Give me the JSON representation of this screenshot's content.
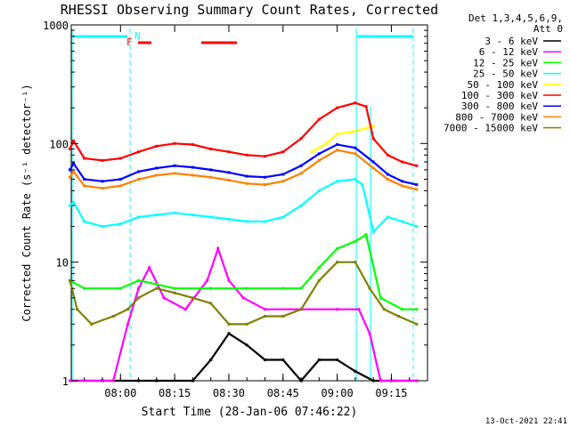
{
  "chart_data": {
    "type": "line",
    "title": "RHESSI Observing Summary Count Rates, Corrected",
    "xlabel": "Start Time (28-Jan-06 07:46:22)",
    "ylabel": "Corrected Count Rate (s⁻¹ detector⁻¹)",
    "y_scale": "log",
    "ylim": [
      1,
      1000
    ],
    "xlim": [
      "07:46:22",
      "09:25:00"
    ],
    "x_ticks": [
      "08:00",
      "08:15",
      "08:30",
      "08:45",
      "09:00",
      "09:15"
    ],
    "y_ticks": [
      "1",
      "10",
      "100",
      "1000"
    ],
    "grid": false,
    "legend_position": "right",
    "legend_header": [
      "Det 1,3,4,5,6,9,",
      "Att 0"
    ],
    "footer": "13-Oct-2021 22:41",
    "markers": {
      "F": "F",
      "N": "N"
    },
    "series": [
      {
        "name": "3 - 6 keV",
        "color": "#000000",
        "x": [
          "07:46",
          "07:55",
          "08:05",
          "08:10",
          "08:20",
          "08:25",
          "08:30",
          "08:35",
          "08:40",
          "08:45",
          "08:50",
          "08:55",
          "09:00",
          "09:05",
          "09:10",
          "09:15",
          "09:22"
        ],
        "y": [
          1,
          1,
          1,
          1,
          1,
          1.5,
          2.5,
          2,
          1.5,
          1.5,
          1,
          1.5,
          1.5,
          1.2,
          1,
          1,
          1
        ]
      },
      {
        "name": "6 - 12 keV",
        "color": "#ff00ff",
        "x": [
          "07:46",
          "07:58",
          "08:02",
          "08:05",
          "08:08",
          "08:12",
          "08:18",
          "08:24",
          "08:27",
          "08:30",
          "08:34",
          "08:40",
          "08:50",
          "09:00",
          "09:06",
          "09:09",
          "09:12",
          "09:16",
          "09:22"
        ],
        "y": [
          1,
          1,
          3,
          6,
          9,
          5,
          4,
          7,
          13,
          7,
          5,
          4,
          4,
          4,
          4,
          2.5,
          1,
          1,
          1
        ]
      },
      {
        "name": "12 - 25 keV",
        "color": "#00ff00",
        "x": [
          "07:46",
          "07:50",
          "08:00",
          "08:05",
          "08:10",
          "08:15",
          "08:25",
          "08:35",
          "08:45",
          "08:50",
          "08:55",
          "09:00",
          "09:05",
          "09:08",
          "09:12",
          "09:18",
          "09:22"
        ],
        "y": [
          7,
          6,
          6,
          7,
          6.5,
          6,
          6,
          6,
          6,
          6,
          9,
          13,
          15,
          17,
          5,
          4,
          4
        ]
      },
      {
        "name": "25 - 50 keV",
        "color": "#00ffff",
        "x": [
          "07:46",
          "07:47",
          "07:50",
          "07:55",
          "08:00",
          "08:05",
          "08:10",
          "08:15",
          "08:20",
          "08:25",
          "08:30",
          "08:35",
          "08:40",
          "08:45",
          "08:50",
          "08:55",
          "09:00",
          "09:05",
          "09:07",
          "09:10",
          "09:14",
          "09:18",
          "09:22"
        ],
        "y": [
          30,
          32,
          22,
          20,
          21,
          24,
          25,
          26,
          25,
          24,
          23,
          22,
          22,
          24,
          30,
          40,
          48,
          50,
          45,
          18,
          24,
          22,
          20
        ]
      },
      {
        "name": "50 - 100 keV",
        "color": "#ffff00",
        "x": [
          "08:53",
          "08:57",
          "09:00",
          "09:04",
          "09:08",
          "09:10"
        ],
        "y": [
          85,
          100,
          120,
          125,
          135,
          140
        ]
      },
      {
        "name": "100 - 300 keV",
        "color": "#ff0000",
        "x": [
          "07:46",
          "07:47",
          "07:50",
          "07:55",
          "08:00",
          "08:05",
          "08:10",
          "08:15",
          "08:20",
          "08:25",
          "08:30",
          "08:35",
          "08:40",
          "08:45",
          "08:50",
          "08:55",
          "09:00",
          "09:05",
          "09:08",
          "09:10",
          "09:14",
          "09:18",
          "09:22"
        ],
        "y": [
          90,
          105,
          75,
          72,
          75,
          85,
          95,
          100,
          98,
          90,
          85,
          80,
          78,
          85,
          110,
          160,
          200,
          220,
          205,
          110,
          80,
          70,
          65
        ]
      },
      {
        "name": "300 - 800 keV",
        "color": "#0000ff",
        "x": [
          "07:46",
          "07:47",
          "07:50",
          "07:55",
          "08:00",
          "08:05",
          "08:10",
          "08:15",
          "08:20",
          "08:25",
          "08:30",
          "08:35",
          "08:40",
          "08:45",
          "08:50",
          "08:55",
          "09:00",
          "09:05",
          "09:10",
          "09:14",
          "09:18",
          "09:22"
        ],
        "y": [
          60,
          68,
          50,
          48,
          50,
          58,
          62,
          65,
          63,
          60,
          57,
          53,
          52,
          55,
          65,
          82,
          98,
          92,
          70,
          55,
          48,
          45
        ]
      },
      {
        "name": "800 - 7000 keV",
        "color": "#ff8000",
        "x": [
          "07:46",
          "07:47",
          "07:50",
          "07:55",
          "08:00",
          "08:05",
          "08:10",
          "08:15",
          "08:20",
          "08:25",
          "08:30",
          "08:35",
          "08:40",
          "08:45",
          "08:50",
          "08:55",
          "09:00",
          "09:05",
          "09:10",
          "09:14",
          "09:18",
          "09:22"
        ],
        "y": [
          52,
          58,
          44,
          42,
          44,
          50,
          54,
          56,
          54,
          52,
          49,
          46,
          45,
          48,
          56,
          72,
          88,
          82,
          62,
          50,
          44,
          41
        ]
      },
      {
        "name": "7000 - 15000 keV",
        "color": "#808000",
        "x": [
          "07:46",
          "07:48",
          "07:52",
          "07:58",
          "08:02",
          "08:05",
          "08:10",
          "08:15",
          "08:20",
          "08:25",
          "08:30",
          "08:35",
          "08:40",
          "08:45",
          "08:50",
          "08:55",
          "09:00",
          "09:05",
          "09:09",
          "09:13",
          "09:17",
          "09:22"
        ],
        "y": [
          7,
          4,
          3,
          3.5,
          4,
          5,
          6,
          5.5,
          5,
          4.5,
          3,
          3,
          3.5,
          3.5,
          4,
          7,
          10,
          10,
          6,
          4,
          3.5,
          3
        ]
      }
    ]
  }
}
